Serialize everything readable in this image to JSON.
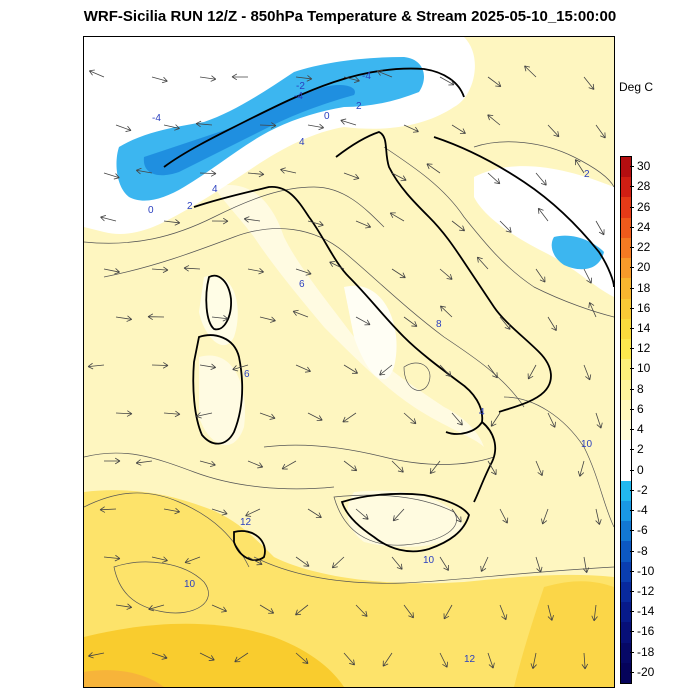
{
  "title": "WRF-Sicilia RUN 12/Z - 850hPa Temperature & Stream 2025-05-10_15:00:00",
  "unit_label": "Deg C",
  "colorbar": {
    "ticks": [
      "30",
      "28",
      "26",
      "24",
      "22",
      "20",
      "18",
      "16",
      "14",
      "12",
      "10",
      "8",
      "6",
      "4",
      "2",
      "0",
      "-2",
      "-4",
      "-6",
      "-8",
      "-10",
      "-12",
      "-14",
      "-16",
      "-18",
      "-20"
    ],
    "colors": [
      "#b40e10",
      "#d01e13",
      "#e53a17",
      "#ef5a1b",
      "#f47a22",
      "#f79a2a",
      "#f8b62f",
      "#f9ca36",
      "#fadb3d",
      "#fde84e",
      "#fdf07a",
      "#fef59c",
      "#fff9bd",
      "#fffdd8",
      "#ffffff",
      "#ffffff",
      "#22b8ef",
      "#1998e4",
      "#1278d3",
      "#0c58c2",
      "#0a3eb0",
      "#08299d",
      "#071a8a",
      "#070f78",
      "#060866",
      "#05035a"
    ]
  },
  "contour_labels": [
    "-4",
    "-4",
    "-4",
    "-2",
    "0",
    "0",
    "2",
    "2",
    "2",
    "4",
    "4",
    "4",
    "6",
    "6",
    "8",
    "10",
    "10",
    "12",
    "12",
    "10"
  ],
  "colors": {
    "warm_bg": "#fef6b8",
    "yellow": "#fde36a",
    "deep_yellow": "#f9cc2e",
    "orange": "#f7b43a",
    "cold": "#3cb6f0",
    "cold_dark": "#1f8fe0",
    "coast": "#000000"
  }
}
